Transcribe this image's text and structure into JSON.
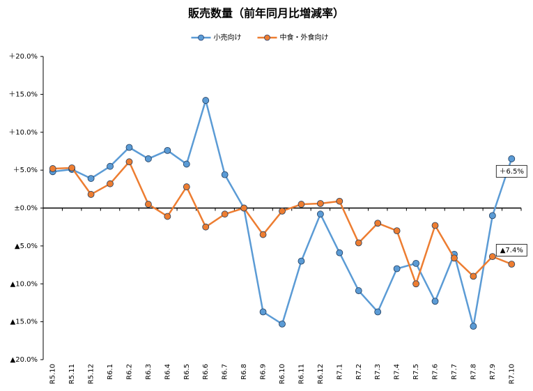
{
  "chart_data": {
    "type": "line",
    "title": "販売数量（前年同月比増減率）",
    "categories": [
      "R5.10",
      "R5.11",
      "R5.12",
      "R6.1",
      "R6.2",
      "R6.3",
      "R6.4",
      "R6.5",
      "R6.6",
      "R6.7",
      "R6.8",
      "R6.9",
      "R6.10",
      "R6.11",
      "R6.12",
      "R7.1",
      "R7.2",
      "R7.3",
      "R7.4",
      "R7.5",
      "R7.6",
      "R7.7",
      "R7.8",
      "R7.9",
      "R7.10"
    ],
    "series": [
      {
        "name": "小売向け",
        "color": "#5b9bd5",
        "values": [
          4.8,
          5.1,
          3.9,
          5.5,
          8.0,
          6.5,
          7.6,
          5.8,
          14.2,
          4.4,
          0.0,
          -13.7,
          -15.3,
          -7.0,
          -0.8,
          -5.9,
          -10.9,
          -13.7,
          -8.0,
          -7.3,
          -12.3,
          -6.1,
          -15.6,
          -1.0,
          6.5
        ],
        "value_labels": [
          null,
          null,
          null,
          null,
          null,
          null,
          null,
          null,
          null,
          null,
          null,
          null,
          null,
          null,
          null,
          null,
          null,
          null,
          null,
          null,
          null,
          null,
          null,
          null,
          "＋6.5%"
        ]
      },
      {
        "name": "中食・外食向け",
        "color": "#ed7d31",
        "values": [
          5.2,
          5.3,
          1.8,
          3.2,
          6.1,
          0.5,
          -1.1,
          2.8,
          -2.5,
          -0.8,
          0.0,
          -3.5,
          -0.4,
          0.5,
          0.6,
          0.9,
          -4.6,
          -2.0,
          -3.0,
          -10.0,
          -2.3,
          -6.6,
          -9.0,
          -6.4,
          -7.4
        ],
        "value_labels": [
          null,
          null,
          null,
          null,
          null,
          null,
          null,
          null,
          null,
          null,
          null,
          null,
          null,
          null,
          null,
          null,
          null,
          null,
          null,
          null,
          null,
          null,
          null,
          null,
          "▲7.4%"
        ]
      }
    ],
    "ylim": [
      -20,
      20
    ],
    "yticks": [
      {
        "value": 20,
        "label": "＋20.0%"
      },
      {
        "value": 15,
        "label": "＋15.0%"
      },
      {
        "value": 10,
        "label": "＋10.0%"
      },
      {
        "value": 5,
        "label": "＋5.0%"
      },
      {
        "value": 0,
        "label": "±0.0%"
      },
      {
        "value": -5,
        "label": "▲5.0%"
      },
      {
        "value": -10,
        "label": "▲10.0%"
      },
      {
        "value": -15,
        "label": "▲15.0%"
      },
      {
        "value": -20,
        "label": "▲20.0%"
      }
    ],
    "legend": "top",
    "grid": false
  }
}
